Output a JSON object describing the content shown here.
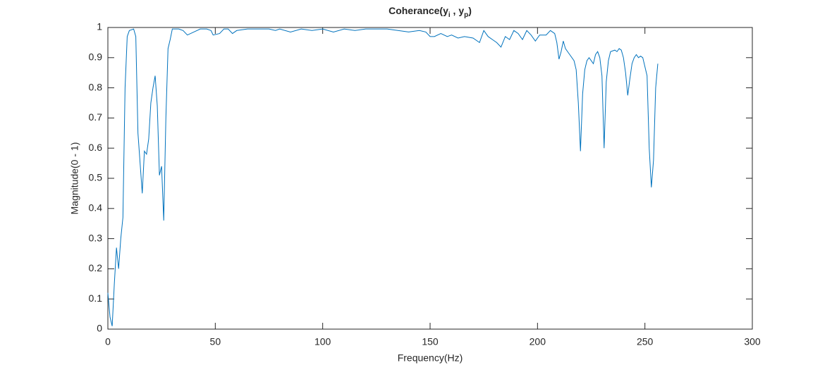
{
  "chart_data": {
    "type": "line",
    "title": [
      "Coherance(y",
      "i",
      " , y",
      "p",
      ")"
    ],
    "x_label": "Frequency(Hz)",
    "y_label": "Magnitude(0 - 1)",
    "xlim": [
      0,
      300
    ],
    "xticks": [
      0,
      50,
      100,
      150,
      200,
      250,
      300
    ],
    "ylim": [
      0,
      1
    ],
    "yticks": [
      0,
      0.1,
      0.2,
      0.3,
      0.4,
      0.5,
      0.6,
      0.7,
      0.8,
      0.9,
      1
    ],
    "grid": false,
    "series": [
      {
        "color": "#0072bd",
        "x": [
          0,
          1,
          2,
          3,
          4,
          5,
          6,
          7,
          8,
          9,
          10,
          12,
          13,
          14,
          15,
          16,
          17,
          18,
          19,
          20,
          21,
          22,
          23,
          24,
          25,
          26,
          27,
          28,
          29,
          30,
          33,
          35,
          37,
          40,
          43,
          46,
          48,
          49,
          52,
          54,
          56,
          58,
          60,
          65,
          70,
          75,
          78,
          80,
          85,
          90,
          95,
          100,
          105,
          110,
          115,
          120,
          125,
          130,
          135,
          140,
          145,
          148,
          150,
          152,
          155,
          158,
          160,
          163,
          166,
          170,
          173,
          175,
          177,
          179,
          181,
          183,
          185,
          187,
          189,
          191,
          193,
          195,
          197,
          199,
          201,
          204,
          206,
          208,
          209,
          210,
          211,
          212,
          213,
          214,
          215,
          217,
          218,
          219,
          220,
          221,
          222,
          223,
          224,
          225,
          226,
          227,
          228,
          229,
          230,
          231,
          232,
          233,
          234,
          236,
          237,
          238,
          239,
          240,
          241,
          242,
          243,
          244,
          245,
          246,
          247,
          248,
          249,
          250,
          251,
          252,
          253,
          254,
          255,
          256
        ],
        "values": [
          0.12,
          0.04,
          0.01,
          0.15,
          0.27,
          0.2,
          0.3,
          0.37,
          0.8,
          0.97,
          0.99,
          0.995,
          0.97,
          0.65,
          0.55,
          0.45,
          0.59,
          0.58,
          0.63,
          0.75,
          0.8,
          0.84,
          0.74,
          0.51,
          0.54,
          0.36,
          0.7,
          0.93,
          0.96,
          0.995,
          0.995,
          0.99,
          0.975,
          0.985,
          0.995,
          0.995,
          0.99,
          0.975,
          0.98,
          0.995,
          0.995,
          0.98,
          0.99,
          0.995,
          0.995,
          0.995,
          0.99,
          0.995,
          0.985,
          0.995,
          0.99,
          0.995,
          0.985,
          0.995,
          0.99,
          0.995,
          0.995,
          0.995,
          0.99,
          0.985,
          0.99,
          0.985,
          0.97,
          0.97,
          0.98,
          0.97,
          0.975,
          0.965,
          0.97,
          0.965,
          0.95,
          0.99,
          0.97,
          0.96,
          0.95,
          0.935,
          0.97,
          0.96,
          0.99,
          0.98,
          0.96,
          0.99,
          0.975,
          0.955,
          0.975,
          0.975,
          0.99,
          0.98,
          0.95,
          0.895,
          0.92,
          0.955,
          0.93,
          0.92,
          0.91,
          0.89,
          0.86,
          0.75,
          0.59,
          0.78,
          0.86,
          0.89,
          0.9,
          0.89,
          0.88,
          0.91,
          0.92,
          0.9,
          0.84,
          0.6,
          0.82,
          0.89,
          0.92,
          0.925,
          0.92,
          0.93,
          0.925,
          0.9,
          0.85,
          0.775,
          0.83,
          0.88,
          0.9,
          0.91,
          0.9,
          0.905,
          0.9,
          0.87,
          0.84,
          0.6,
          0.47,
          0.56,
          0.8,
          0.88
        ]
      }
    ]
  }
}
